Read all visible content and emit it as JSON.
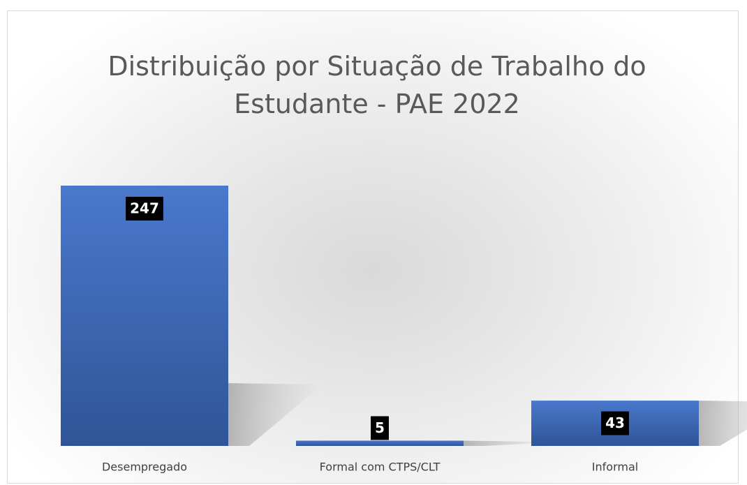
{
  "chart_data": {
    "type": "bar",
    "title": "Distribuição por Situação de Trabalho do Estudante - PAE 2022",
    "categories": [
      "Desempregado",
      "Formal com CTPS/CLT",
      "Informal"
    ],
    "values": [
      247,
      5,
      43
    ],
    "color": "#4472c4"
  }
}
